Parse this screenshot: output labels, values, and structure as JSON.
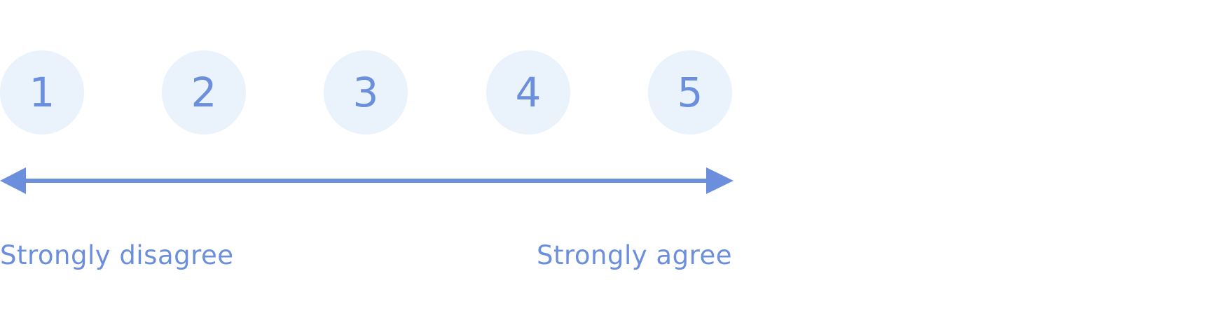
{
  "scale": {
    "options": [
      {
        "label": "1"
      },
      {
        "label": "2"
      },
      {
        "label": "3"
      },
      {
        "label": "4"
      },
      {
        "label": "5"
      }
    ],
    "min_label": "Strongly disagree",
    "max_label": "Strongly agree"
  },
  "colors": {
    "accent": "#6b8fdd",
    "option_background": "#eaf2fc"
  },
  "icons": {
    "axis": "double-arrow-icon"
  }
}
